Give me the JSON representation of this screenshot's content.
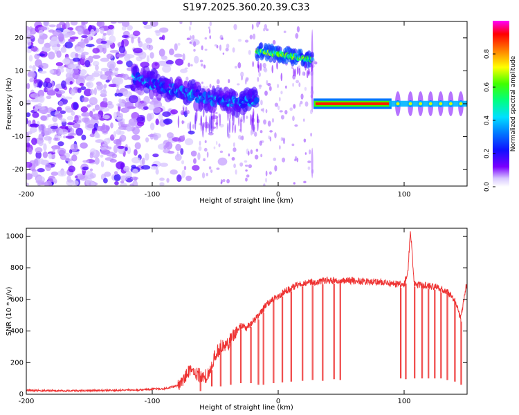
{
  "window": {
    "title": "S197.2025.360.20.39.C33"
  },
  "colors": {
    "snr_line": "#ee3333",
    "spec_purple": "#6a00d8",
    "spec_light": "#c7a6f0",
    "axis": "#000000"
  },
  "chart_data": [
    {
      "type": "heatmap",
      "title": "S197.2025.360.20.39.C33",
      "xlabel": "Height of straight line (km)",
      "ylabel": "Frequency (Hz)",
      "xlim": [
        -200,
        150
      ],
      "ylim": [
        -25,
        25
      ],
      "x_ticks": [
        -200,
        -100,
        0,
        100
      ],
      "y_ticks": [
        -20,
        -10,
        0,
        10,
        20
      ],
      "colorbar": {
        "label": "Normalized spectral amplitude",
        "range": [
          0,
          1
        ],
        "ticks": [
          0.0,
          0.2,
          0.4,
          0.6,
          0.8
        ],
        "colormap": "rainbow (purple-blue-cyan-green-yellow-red-magenta)"
      },
      "features": [
        {
          "name": "noise",
          "x_range": [
            -200,
            -80
          ],
          "freq_range": [
            -25,
            25
          ],
          "amplitude": 0.1
        },
        {
          "name": "descending_band",
          "x": [
            -115,
            -90,
            -70,
            -50,
            -30,
            -17
          ],
          "freq": [
            8,
            5,
            3,
            1,
            0.5,
            1
          ],
          "amplitude": 0.35
        },
        {
          "name": "upper_band",
          "x_range": [
            -17,
            27
          ],
          "freq": [
            16,
            13.5
          ],
          "amplitude": 0.6
        },
        {
          "name": "zero_line_band",
          "x_range": [
            28,
            90
          ],
          "freq": 0,
          "amplitude": 0.9
        },
        {
          "name": "pulses",
          "x": [
            95,
            105,
            113,
            121,
            129,
            137,
            145
          ],
          "freq": 0,
          "amplitude": 0.7
        }
      ]
    },
    {
      "type": "line",
      "xlabel": "Height of straight line (km)",
      "ylabel": "SNR (10 * v/v)",
      "xlim": [
        -200,
        150
      ],
      "ylim": [
        0,
        1050
      ],
      "x_ticks": [
        -200,
        -100,
        0,
        100
      ],
      "y_ticks": [
        0,
        200,
        400,
        600,
        800,
        1000
      ],
      "series": [
        {
          "name": "SNR",
          "x": [
            -200,
            -170,
            -140,
            -110,
            -90,
            -80,
            -75,
            -70,
            -65,
            -60,
            -55,
            -50,
            -45,
            -40,
            -35,
            -30,
            -25,
            -20,
            -15,
            -10,
            -5,
            0,
            5,
            10,
            15,
            20,
            25,
            30,
            35,
            40,
            45,
            50,
            55,
            60,
            65,
            70,
            75,
            80,
            85,
            90,
            95,
            100,
            103,
            105,
            108,
            112,
            118,
            125,
            130,
            135,
            140,
            145,
            150
          ],
          "values": [
            25,
            22,
            24,
            28,
            35,
            55,
            100,
            160,
            130,
            110,
            120,
            250,
            310,
            320,
            380,
            430,
            420,
            460,
            500,
            560,
            600,
            620,
            650,
            670,
            690,
            700,
            705,
            710,
            715,
            720,
            720,
            720,
            718,
            718,
            715,
            715,
            712,
            710,
            705,
            700,
            695,
            690,
            780,
            1040,
            700,
            690,
            685,
            680,
            660,
            640,
            600,
            480,
            720
          ]
        }
      ],
      "dropouts": {
        "x": [
          -62,
          -53,
          -46,
          -38,
          -30,
          -22,
          -16,
          -12,
          -4,
          3,
          10,
          19,
          27,
          35,
          44,
          49,
          97,
          101,
          108,
          114,
          119,
          124,
          129,
          134,
          140,
          145
        ],
        "values": [
          20,
          50,
          50,
          60,
          70,
          70,
          60,
          60,
          70,
          75,
          80,
          85,
          90,
          85,
          95,
          90,
          100,
          95,
          100,
          100,
          100,
          100,
          100,
          90,
          80,
          60
        ]
      }
    }
  ]
}
